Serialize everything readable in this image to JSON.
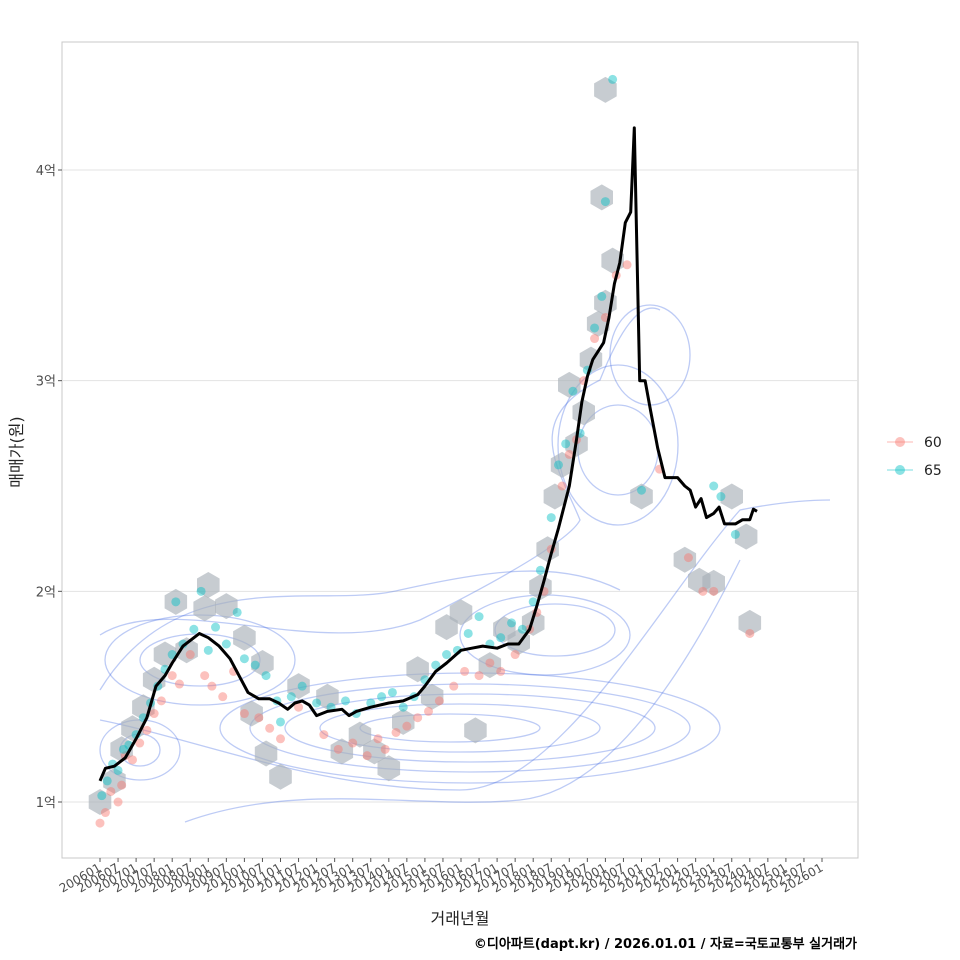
{
  "chart_data": {
    "type": "scatter",
    "xlabel": "거래년월",
    "ylabel": "매매가(원)",
    "caption": "©디아파트(dapt.kr) / 2026.01.01 / 자료=국토교통부 실거래가",
    "y_unit": "억",
    "ylim": [
      0.7,
      4.6
    ],
    "xlim": [
      2005.4,
      2026.7
    ],
    "y_ticks": [
      1,
      2,
      3,
      4
    ],
    "y_tick_labels": [
      "1억",
      "2억",
      "3억",
      "4억"
    ],
    "x_tick_values": [
      2006.0,
      2006.5,
      2007.0,
      2007.5,
      2008.0,
      2008.5,
      2009.0,
      2009.5,
      2010.0,
      2010.5,
      2011.0,
      2011.5,
      2012.0,
      2012.5,
      2013.0,
      2013.5,
      2014.0,
      2014.5,
      2015.0,
      2015.5,
      2016.0,
      2016.5,
      2017.0,
      2017.5,
      2018.0,
      2018.5,
      2019.0,
      2019.5,
      2020.0,
      2020.5,
      2021.0,
      2021.5,
      2022.0,
      2022.5,
      2023.0,
      2023.5,
      2024.0,
      2024.5,
      2025.0,
      2025.5,
      2026.0
    ],
    "x_tick_labels": [
      "200601",
      "200607",
      "200701",
      "200707",
      "200801",
      "200807",
      "200901",
      "200907",
      "201001",
      "201007",
      "201101",
      "201107",
      "201201",
      "201207",
      "201301",
      "201307",
      "201401",
      "201407",
      "201501",
      "201507",
      "201601",
      "201607",
      "201701",
      "201707",
      "201801",
      "201807",
      "201901",
      "201907",
      "202001",
      "202007",
      "202101",
      "202107",
      "202201",
      "202207",
      "202301",
      "202307",
      "202401",
      "202407",
      "202501",
      "202507",
      "202601"
    ],
    "legend": {
      "title": "",
      "position": "right",
      "items": [
        {
          "label": "60",
          "color": "#F8766D"
        },
        {
          "label": "65",
          "color": "#00BFC4"
        }
      ]
    },
    "trend_line": {
      "name": "moving-average",
      "color": "#000000",
      "points": [
        [
          2006.0,
          1.1
        ],
        [
          2006.15,
          1.16
        ],
        [
          2006.4,
          1.17
        ],
        [
          2006.7,
          1.21
        ],
        [
          2007.0,
          1.3
        ],
        [
          2007.3,
          1.4
        ],
        [
          2007.55,
          1.55
        ],
        [
          2007.8,
          1.6
        ],
        [
          2008.0,
          1.66
        ],
        [
          2008.3,
          1.74
        ],
        [
          2008.6,
          1.78
        ],
        [
          2008.75,
          1.8
        ],
        [
          2009.0,
          1.78
        ],
        [
          2009.3,
          1.74
        ],
        [
          2009.6,
          1.68
        ],
        [
          2009.85,
          1.6
        ],
        [
          2010.1,
          1.52
        ],
        [
          2010.4,
          1.49
        ],
        [
          2010.7,
          1.49
        ],
        [
          2010.95,
          1.47
        ],
        [
          2011.2,
          1.44
        ],
        [
          2011.4,
          1.47
        ],
        [
          2011.6,
          1.48
        ],
        [
          2011.8,
          1.46
        ],
        [
          2012.0,
          1.41
        ],
        [
          2012.3,
          1.43
        ],
        [
          2012.7,
          1.44
        ],
        [
          2012.9,
          1.41
        ],
        [
          2013.1,
          1.43
        ],
        [
          2013.5,
          1.45
        ],
        [
          2014.0,
          1.47
        ],
        [
          2014.4,
          1.48
        ],
        [
          2014.8,
          1.51
        ],
        [
          2015.0,
          1.55
        ],
        [
          2015.3,
          1.62
        ],
        [
          2015.6,
          1.66
        ],
        [
          2016.0,
          1.72
        ],
        [
          2016.3,
          1.73
        ],
        [
          2016.6,
          1.74
        ],
        [
          2017.0,
          1.73
        ],
        [
          2017.3,
          1.75
        ],
        [
          2017.6,
          1.75
        ],
        [
          2017.9,
          1.82
        ],
        [
          2018.1,
          1.93
        ],
        [
          2018.3,
          2.05
        ],
        [
          2018.5,
          2.18
        ],
        [
          2018.7,
          2.3
        ],
        [
          2018.85,
          2.4
        ],
        [
          2019.0,
          2.5
        ],
        [
          2019.2,
          2.72
        ],
        [
          2019.35,
          2.9
        ],
        [
          2019.5,
          3.02
        ],
        [
          2019.65,
          3.1
        ],
        [
          2019.8,
          3.14
        ],
        [
          2019.95,
          3.18
        ],
        [
          2020.1,
          3.3
        ],
        [
          2020.25,
          3.46
        ],
        [
          2020.4,
          3.56
        ],
        [
          2020.55,
          3.75
        ],
        [
          2020.7,
          3.8
        ],
        [
          2020.8,
          4.2
        ],
        [
          2020.95,
          3.0
        ],
        [
          2021.1,
          3.0
        ],
        [
          2021.25,
          2.86
        ],
        [
          2021.45,
          2.68
        ],
        [
          2021.65,
          2.54
        ],
        [
          2022.0,
          2.54
        ],
        [
          2022.2,
          2.5
        ],
        [
          2022.35,
          2.48
        ],
        [
          2022.5,
          2.4
        ],
        [
          2022.65,
          2.44
        ],
        [
          2022.8,
          2.35
        ],
        [
          2023.0,
          2.37
        ],
        [
          2023.15,
          2.4
        ],
        [
          2023.3,
          2.32
        ],
        [
          2023.6,
          2.32
        ],
        [
          2023.8,
          2.34
        ],
        [
          2024.0,
          2.34
        ],
        [
          2024.1,
          2.39
        ],
        [
          2024.2,
          2.38
        ]
      ]
    },
    "series": [
      {
        "name": "60",
        "color": "#F8766D",
        "points": [
          [
            2006.0,
            0.9
          ],
          [
            2006.15,
            0.95
          ],
          [
            2006.3,
            1.05
          ],
          [
            2006.5,
            1.0
          ],
          [
            2006.6,
            1.08
          ],
          [
            2006.7,
            1.22
          ],
          [
            2006.9,
            1.2
          ],
          [
            2007.1,
            1.28
          ],
          [
            2007.3,
            1.34
          ],
          [
            2007.5,
            1.42
          ],
          [
            2007.7,
            1.48
          ],
          [
            2008.0,
            1.6
          ],
          [
            2008.2,
            1.56
          ],
          [
            2008.5,
            1.7
          ],
          [
            2008.9,
            1.6
          ],
          [
            2009.1,
            1.55
          ],
          [
            2009.4,
            1.5
          ],
          [
            2009.7,
            1.62
          ],
          [
            2010.0,
            1.42
          ],
          [
            2010.4,
            1.4
          ],
          [
            2010.7,
            1.35
          ],
          [
            2011.0,
            1.3
          ],
          [
            2011.5,
            1.45
          ],
          [
            2012.2,
            1.32
          ],
          [
            2012.6,
            1.25
          ],
          [
            2013.0,
            1.28
          ],
          [
            2013.4,
            1.22
          ],
          [
            2013.7,
            1.3
          ],
          [
            2013.9,
            1.25
          ],
          [
            2014.2,
            1.33
          ],
          [
            2014.5,
            1.36
          ],
          [
            2014.8,
            1.4
          ],
          [
            2015.1,
            1.43
          ],
          [
            2015.4,
            1.48
          ],
          [
            2015.8,
            1.55
          ],
          [
            2016.1,
            1.62
          ],
          [
            2016.5,
            1.6
          ],
          [
            2016.8,
            1.66
          ],
          [
            2017.1,
            1.62
          ],
          [
            2017.5,
            1.7
          ],
          [
            2017.9,
            1.82
          ],
          [
            2018.1,
            1.9
          ],
          [
            2018.3,
            2.0
          ],
          [
            2018.5,
            2.2
          ],
          [
            2018.8,
            2.5
          ],
          [
            2019.0,
            2.65
          ],
          [
            2019.2,
            2.72
          ],
          [
            2019.4,
            3.0
          ],
          [
            2019.7,
            3.2
          ],
          [
            2020.0,
            3.3
          ],
          [
            2020.3,
            3.5
          ],
          [
            2020.6,
            3.55
          ],
          [
            2021.5,
            2.58
          ],
          [
            2022.3,
            2.16
          ],
          [
            2022.7,
            2.0
          ],
          [
            2023.0,
            2.0
          ],
          [
            2024.0,
            1.8
          ]
        ]
      },
      {
        "name": "65",
        "color": "#00BFC4",
        "points": [
          [
            2006.05,
            1.03
          ],
          [
            2006.2,
            1.1
          ],
          [
            2006.35,
            1.18
          ],
          [
            2006.5,
            1.15
          ],
          [
            2006.65,
            1.25
          ],
          [
            2006.8,
            1.27
          ],
          [
            2007.0,
            1.32
          ],
          [
            2007.2,
            1.4
          ],
          [
            2007.4,
            1.47
          ],
          [
            2007.6,
            1.55
          ],
          [
            2007.8,
            1.63
          ],
          [
            2008.0,
            1.7
          ],
          [
            2008.1,
            1.95
          ],
          [
            2008.3,
            1.75
          ],
          [
            2008.6,
            1.82
          ],
          [
            2008.8,
            2.0
          ],
          [
            2009.0,
            1.72
          ],
          [
            2009.2,
            1.83
          ],
          [
            2009.5,
            1.75
          ],
          [
            2009.8,
            1.9
          ],
          [
            2010.0,
            1.68
          ],
          [
            2010.3,
            1.65
          ],
          [
            2010.6,
            1.6
          ],
          [
            2010.9,
            1.48
          ],
          [
            2011.0,
            1.38
          ],
          [
            2011.3,
            1.5
          ],
          [
            2011.6,
            1.55
          ],
          [
            2012.0,
            1.47
          ],
          [
            2012.4,
            1.45
          ],
          [
            2012.8,
            1.48
          ],
          [
            2013.1,
            1.42
          ],
          [
            2013.5,
            1.47
          ],
          [
            2013.8,
            1.5
          ],
          [
            2014.1,
            1.52
          ],
          [
            2014.4,
            1.45
          ],
          [
            2014.7,
            1.5
          ],
          [
            2015.0,
            1.58
          ],
          [
            2015.3,
            1.65
          ],
          [
            2015.6,
            1.7
          ],
          [
            2015.9,
            1.72
          ],
          [
            2016.2,
            1.8
          ],
          [
            2016.5,
            1.88
          ],
          [
            2016.8,
            1.75
          ],
          [
            2017.1,
            1.78
          ],
          [
            2017.4,
            1.85
          ],
          [
            2017.7,
            1.82
          ],
          [
            2018.0,
            1.95
          ],
          [
            2018.2,
            2.1
          ],
          [
            2018.5,
            2.35
          ],
          [
            2018.7,
            2.6
          ],
          [
            2018.9,
            2.7
          ],
          [
            2019.1,
            2.95
          ],
          [
            2019.3,
            2.75
          ],
          [
            2019.5,
            3.05
          ],
          [
            2019.7,
            3.25
          ],
          [
            2019.9,
            3.4
          ],
          [
            2020.0,
            3.85
          ],
          [
            2020.2,
            4.43
          ],
          [
            2021.0,
            2.48
          ],
          [
            2023.0,
            2.5
          ],
          [
            2023.2,
            2.45
          ],
          [
            2023.6,
            2.27
          ]
        ]
      }
    ],
    "hexbins": [
      [
        2006.0,
        1.0
      ],
      [
        2006.4,
        1.1
      ],
      [
        2006.6,
        1.25
      ],
      [
        2006.9,
        1.35
      ],
      [
        2007.2,
        1.45
      ],
      [
        2007.5,
        1.58
      ],
      [
        2007.8,
        1.7
      ],
      [
        2008.1,
        1.95
      ],
      [
        2008.4,
        1.72
      ],
      [
        2008.9,
        1.92
      ],
      [
        2009.0,
        2.03
      ],
      [
        2009.5,
        1.93
      ],
      [
        2010.0,
        1.78
      ],
      [
        2010.5,
        1.66
      ],
      [
        2010.2,
        1.42
      ],
      [
        2010.6,
        1.23
      ],
      [
        2011.0,
        1.12
      ],
      [
        2011.5,
        1.55
      ],
      [
        2012.3,
        1.5
      ],
      [
        2012.7,
        1.24
      ],
      [
        2013.2,
        1.32
      ],
      [
        2013.6,
        1.24
      ],
      [
        2014.0,
        1.16
      ],
      [
        2014.4,
        1.38
      ],
      [
        2014.8,
        1.63
      ],
      [
        2015.2,
        1.5
      ],
      [
        2015.6,
        1.83
      ],
      [
        2016.0,
        1.9
      ],
      [
        2016.4,
        1.34
      ],
      [
        2016.8,
        1.65
      ],
      [
        2017.2,
        1.82
      ],
      [
        2017.6,
        1.76
      ],
      [
        2018.0,
        1.85
      ],
      [
        2018.2,
        2.02
      ],
      [
        2018.4,
        2.2
      ],
      [
        2018.6,
        2.45
      ],
      [
        2018.8,
        2.6
      ],
      [
        2019.0,
        2.98
      ],
      [
        2019.2,
        2.7
      ],
      [
        2019.4,
        2.85
      ],
      [
        2019.6,
        3.1
      ],
      [
        2019.8,
        3.27
      ],
      [
        2020.0,
        3.37
      ],
      [
        2020.2,
        3.57
      ],
      [
        2019.9,
        3.87
      ],
      [
        2020.0,
        4.38
      ],
      [
        2021.0,
        2.45
      ],
      [
        2022.2,
        2.15
      ],
      [
        2022.6,
        2.05
      ],
      [
        2023.0,
        2.04
      ],
      [
        2023.5,
        2.45
      ],
      [
        2023.9,
        2.26
      ],
      [
        2024.0,
        1.85
      ]
    ],
    "density_contours": "kernel density estimate (blue contour lines)"
  }
}
